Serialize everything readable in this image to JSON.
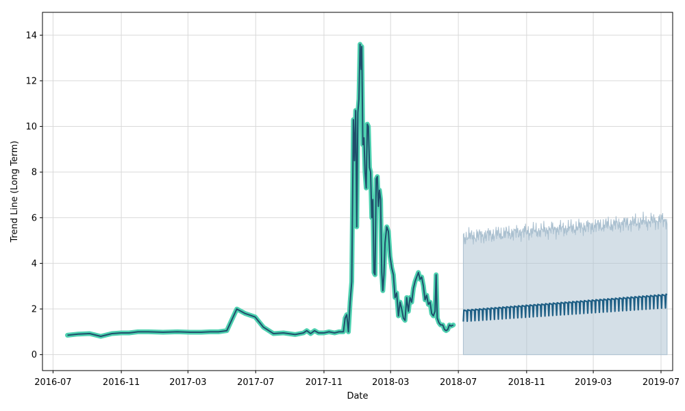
{
  "chart_data": {
    "type": "line",
    "title": "",
    "xlabel": "Date",
    "ylabel": "Trend Line (Long Term)",
    "xlim": [
      "2016-06-12",
      "2019-07-22"
    ],
    "ylim": [
      -0.7,
      15.0
    ],
    "grid": true,
    "legend": "none",
    "x_ticks": [
      "2016-07",
      "2016-11",
      "2017-03",
      "2017-07",
      "2017-11",
      "2018-03",
      "2018-07",
      "2018-11",
      "2019-03",
      "2019-07"
    ],
    "y_ticks": [
      0,
      2,
      4,
      6,
      8,
      10,
      12,
      14
    ],
    "colors": {
      "actual_highlight": "#4fd1b0",
      "actual_line": "#1f4e6b",
      "forecast_line": "#1f5f85",
      "band_fill": "#a9bfcf",
      "grid": "#d9d9d9"
    },
    "series": [
      {
        "role": "actual",
        "points": [
          [
            "2016-07-27",
            0.85
          ],
          [
            "2016-08-15",
            0.9
          ],
          [
            "2016-09-05",
            0.92
          ],
          [
            "2016-09-25",
            0.8
          ],
          [
            "2016-10-15",
            0.92
          ],
          [
            "2016-11-01",
            0.95
          ],
          [
            "2016-11-15",
            0.95
          ],
          [
            "2016-12-01",
            1.0
          ],
          [
            "2016-12-20",
            1.0
          ],
          [
            "2017-01-15",
            0.98
          ],
          [
            "2017-02-10",
            1.0
          ],
          [
            "2017-03-05",
            0.98
          ],
          [
            "2017-03-25",
            0.98
          ],
          [
            "2017-04-10",
            1.0
          ],
          [
            "2017-04-25",
            1.0
          ],
          [
            "2017-05-10",
            1.05
          ],
          [
            "2017-05-28",
            2.0
          ],
          [
            "2017-06-12",
            1.8
          ],
          [
            "2017-06-30",
            1.65
          ],
          [
            "2017-07-15",
            1.2
          ],
          [
            "2017-08-02",
            0.92
          ],
          [
            "2017-08-20",
            0.95
          ],
          [
            "2017-09-10",
            0.88
          ],
          [
            "2017-09-25",
            0.95
          ],
          [
            "2017-10-01",
            1.05
          ],
          [
            "2017-10-08",
            0.92
          ],
          [
            "2017-10-15",
            1.05
          ],
          [
            "2017-10-22",
            0.95
          ],
          [
            "2017-11-01",
            0.95
          ],
          [
            "2017-11-10",
            1.0
          ],
          [
            "2017-11-20",
            0.95
          ],
          [
            "2017-11-28",
            1.0
          ],
          [
            "2017-12-06",
            1.0
          ],
          [
            "2017-12-09",
            1.6
          ],
          [
            "2017-12-12",
            1.75
          ],
          [
            "2017-12-15",
            1.0
          ],
          [
            "2017-12-18",
            2.3
          ],
          [
            "2017-12-21",
            3.2
          ],
          [
            "2017-12-24",
            10.3
          ],
          [
            "2017-12-26",
            8.5
          ],
          [
            "2017-12-28",
            10.7
          ],
          [
            "2017-12-30",
            5.6
          ],
          [
            "2018-01-01",
            10.6
          ],
          [
            "2018-01-03",
            11.2
          ],
          [
            "2018-01-05",
            13.6
          ],
          [
            "2018-01-07",
            12.5
          ],
          [
            "2018-01-08",
            13.5
          ],
          [
            "2018-01-10",
            9.2
          ],
          [
            "2018-01-12",
            9.5
          ],
          [
            "2018-01-14",
            8.0
          ],
          [
            "2018-01-16",
            7.3
          ],
          [
            "2018-01-18",
            10.1
          ],
          [
            "2018-01-20",
            10.0
          ],
          [
            "2018-01-22",
            8.2
          ],
          [
            "2018-01-24",
            8.0
          ],
          [
            "2018-01-26",
            6.0
          ],
          [
            "2018-01-28",
            6.8
          ],
          [
            "2018-01-30",
            3.6
          ],
          [
            "2018-02-01",
            3.5
          ],
          [
            "2018-02-03",
            7.7
          ],
          [
            "2018-02-05",
            7.8
          ],
          [
            "2018-02-07",
            6.5
          ],
          [
            "2018-02-09",
            7.2
          ],
          [
            "2018-02-11",
            6.8
          ],
          [
            "2018-02-13",
            3.6
          ],
          [
            "2018-02-15",
            2.8
          ],
          [
            "2018-02-17",
            3.5
          ],
          [
            "2018-02-19",
            4.9
          ],
          [
            "2018-02-22",
            5.6
          ],
          [
            "2018-02-25",
            5.4
          ],
          [
            "2018-02-28",
            4.3
          ],
          [
            "2018-03-03",
            3.8
          ],
          [
            "2018-03-06",
            3.5
          ],
          [
            "2018-03-09",
            2.5
          ],
          [
            "2018-03-12",
            2.7
          ],
          [
            "2018-03-15",
            1.7
          ],
          [
            "2018-03-18",
            2.3
          ],
          [
            "2018-03-21",
            2.0
          ],
          [
            "2018-03-24",
            1.6
          ],
          [
            "2018-03-27",
            1.5
          ],
          [
            "2018-03-30",
            2.5
          ],
          [
            "2018-04-02",
            1.9
          ],
          [
            "2018-04-05",
            2.5
          ],
          [
            "2018-04-08",
            2.3
          ],
          [
            "2018-04-11",
            2.9
          ],
          [
            "2018-04-14",
            3.2
          ],
          [
            "2018-04-17",
            3.4
          ],
          [
            "2018-04-20",
            3.6
          ],
          [
            "2018-04-23",
            3.3
          ],
          [
            "2018-04-26",
            3.4
          ],
          [
            "2018-04-29",
            3.0
          ],
          [
            "2018-05-02",
            2.4
          ],
          [
            "2018-05-05",
            2.6
          ],
          [
            "2018-05-08",
            2.2
          ],
          [
            "2018-05-11",
            2.3
          ],
          [
            "2018-05-14",
            1.8
          ],
          [
            "2018-05-17",
            1.7
          ],
          [
            "2018-05-20",
            1.9
          ],
          [
            "2018-05-22",
            3.5
          ],
          [
            "2018-05-24",
            1.6
          ],
          [
            "2018-05-27",
            1.4
          ],
          [
            "2018-05-30",
            1.3
          ],
          [
            "2018-06-03",
            1.3
          ],
          [
            "2018-06-06",
            1.1
          ],
          [
            "2018-06-09",
            1.05
          ],
          [
            "2018-06-12",
            1.1
          ],
          [
            "2018-06-15",
            1.3
          ],
          [
            "2018-06-18",
            1.25
          ],
          [
            "2018-06-22",
            1.3
          ]
        ]
      },
      {
        "role": "forecast",
        "x_start": "2018-07-10",
        "x_end": "2019-07-12",
        "period_days": 7,
        "peak_start": 1.95,
        "peak_end": 2.65,
        "trough_start": 1.45,
        "trough_end": 2.05,
        "band_lower": 0,
        "band_upper_start": 5.15,
        "band_upper_end": 5.9
      }
    ]
  }
}
